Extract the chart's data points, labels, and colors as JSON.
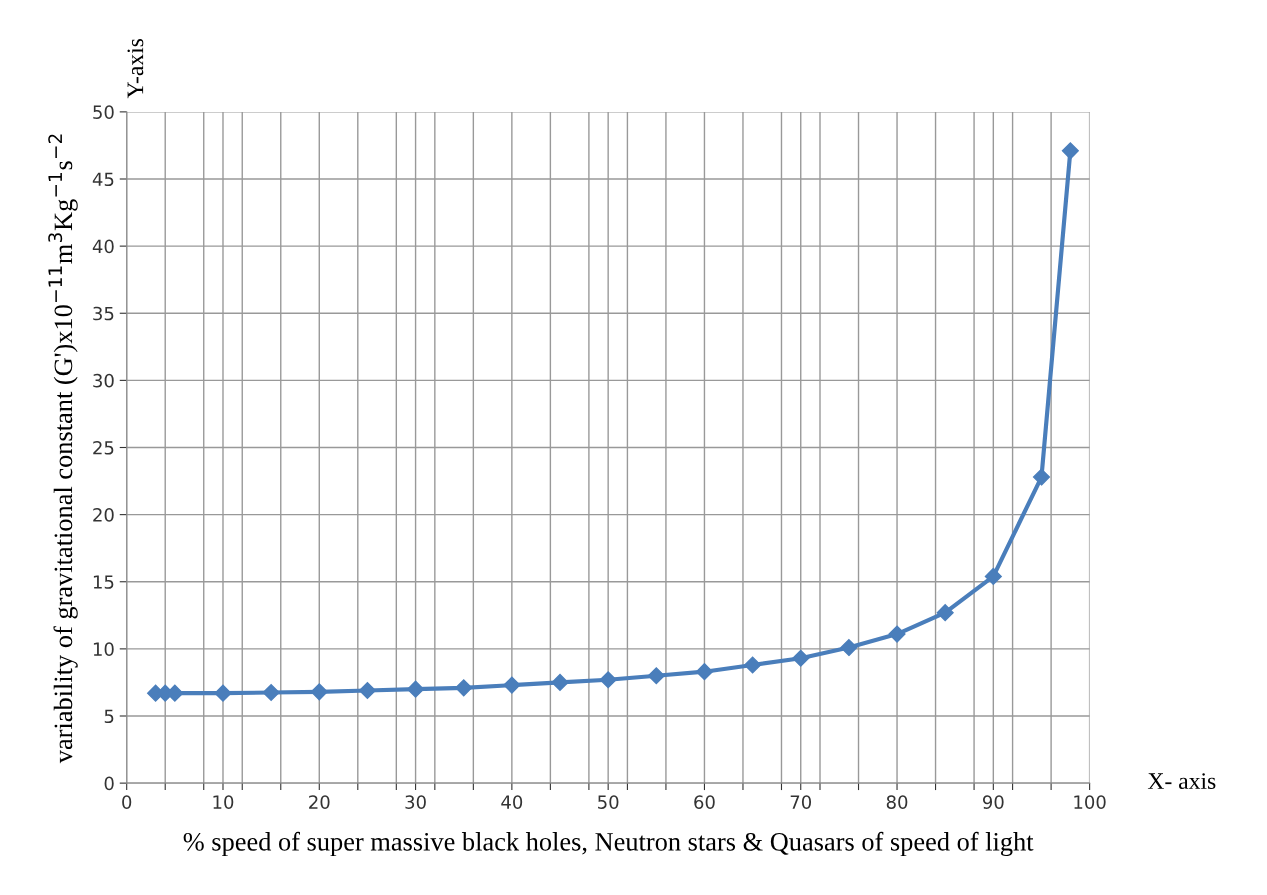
{
  "chart_data": {
    "type": "line",
    "xlabel": "% speed of super massive black holes, Neutron stars & Quasars of speed of light",
    "ylabel": "variability of gravitational constant (G')x10$^{−11}$m$^{3}$Kg$^{−1}$s$^{−2}$",
    "annotations": [
      "Y-axis",
      "X- axis"
    ],
    "x": [
      3,
      4,
      5,
      10,
      15,
      20,
      25,
      30,
      35,
      40,
      45,
      50,
      55,
      60,
      65,
      70,
      75,
      80,
      85,
      90,
      95,
      98
    ],
    "series": [
      {
        "color": "#4a7ebb",
        "values": [
          6.7,
          6.7,
          6.7,
          6.7,
          6.75,
          6.8,
          6.9,
          7.0,
          7.1,
          7.3,
          7.5,
          7.7,
          8.0,
          8.3,
          8.8,
          9.3,
          10.1,
          11.1,
          12.7,
          15.4,
          22.8,
          47.1
        ]
      }
    ],
    "xlim": [
      0,
      100
    ],
    "ylim": [
      0,
      50
    ],
    "xticks": [
      0,
      {
        "value": 4,
        "label": null
      },
      {
        "value": 8,
        "label": null
      },
      10,
      {
        "value": 12,
        "label": null
      },
      {
        "value": 16,
        "label": null
      },
      20,
      {
        "value": 24,
        "label": null
      },
      {
        "value": 28,
        "label": null
      },
      30,
      {
        "value": 32,
        "label": null
      },
      {
        "value": 36,
        "label": null
      },
      40,
      {
        "value": 44,
        "label": null
      },
      {
        "value": 48,
        "label": null
      },
      50,
      {
        "value": 52,
        "label": null
      },
      {
        "value": 56,
        "label": null
      },
      60,
      {
        "value": 64,
        "label": null
      },
      {
        "value": 68,
        "label": null
      },
      70,
      {
        "value": 72,
        "label": null
      },
      {
        "value": 76,
        "label": null
      },
      80,
      {
        "value": 84,
        "label": null
      },
      {
        "value": 88,
        "label": null
      },
      90,
      {
        "value": 92,
        "label": null
      },
      {
        "value": 96,
        "label": null
      },
      100
    ],
    "yticks": [
      0,
      5,
      10,
      15,
      20,
      25,
      30,
      35,
      40,
      45,
      50
    ],
    "grid": true,
    "marker": "diamond",
    "line_style": "solid",
    "legend": false
  }
}
